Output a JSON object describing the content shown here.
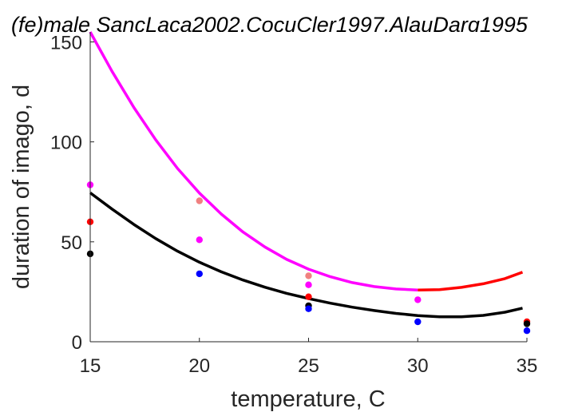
{
  "chart_data": {
    "type": "scatter",
    "title": "(fe)male SancLaca2002,CocuCler1997,AlauDarg1995",
    "xlabel": "temperature, C",
    "ylabel": "duration of imago, d",
    "xlim": [
      15,
      35
    ],
    "ylim": [
      0,
      155
    ],
    "xticks": [
      "15",
      "20",
      "25",
      "30",
      "35"
    ],
    "yticks": [
      "0",
      "50",
      "100",
      "150"
    ],
    "grid": false,
    "points": [
      {
        "color": "#ff00ff",
        "values": [
          [
            15,
            78.5
          ],
          [
            20,
            51
          ],
          [
            25,
            28.5
          ],
          [
            30,
            21
          ]
        ]
      },
      {
        "color": "#f08080",
        "values": [
          [
            20,
            70.5
          ],
          [
            25,
            33
          ]
        ]
      },
      {
        "color": "#ff0000",
        "values": [
          [
            15,
            60
          ],
          [
            25,
            22.5
          ],
          [
            35,
            10
          ]
        ]
      },
      {
        "color": "#000000",
        "values": [
          [
            15,
            44
          ],
          [
            25,
            18
          ],
          [
            35,
            9
          ]
        ]
      },
      {
        "color": "#0000ff",
        "values": [
          [
            20,
            34
          ],
          [
            25,
            16.5
          ],
          [
            30,
            10
          ],
          [
            35,
            5.5
          ]
        ]
      }
    ],
    "curves": [
      {
        "color": "#ff00ff",
        "values": [
          [
            15,
            155
          ],
          [
            16,
            135.3
          ],
          [
            17,
            117.2
          ],
          [
            18,
            101
          ],
          [
            19,
            86.7
          ],
          [
            20,
            74.4
          ],
          [
            21,
            63.9
          ],
          [
            22,
            54.9
          ],
          [
            23,
            47.4
          ],
          [
            24,
            41.2
          ],
          [
            25,
            36.3
          ],
          [
            26,
            32.5
          ],
          [
            27,
            29.6
          ],
          [
            28,
            27.6
          ],
          [
            29,
            26.4
          ],
          [
            30,
            25.9
          ]
        ]
      },
      {
        "color": "#ff0000",
        "values": [
          [
            30,
            25.9
          ],
          [
            31,
            26.1
          ],
          [
            32,
            27.2
          ],
          [
            33,
            29
          ],
          [
            34,
            31.6
          ],
          [
            34.8,
            34.8
          ]
        ]
      },
      {
        "color": "#000000",
        "values": [
          [
            15,
            74.5
          ],
          [
            16,
            66.4
          ],
          [
            17,
            58.7
          ],
          [
            18,
            51.6
          ],
          [
            19,
            45.3
          ],
          [
            20,
            39.8
          ],
          [
            21,
            35
          ],
          [
            22,
            30.9
          ],
          [
            23,
            27.3
          ],
          [
            24,
            24.2
          ],
          [
            25,
            21.6
          ],
          [
            26,
            19.3
          ],
          [
            27,
            17.3
          ],
          [
            28,
            15.6
          ],
          [
            29,
            14.2
          ],
          [
            30,
            13.1
          ],
          [
            31,
            12.5
          ],
          [
            32,
            12.5
          ],
          [
            33,
            13.2
          ],
          [
            34,
            14.8
          ],
          [
            34.8,
            16.8
          ]
        ]
      }
    ]
  }
}
